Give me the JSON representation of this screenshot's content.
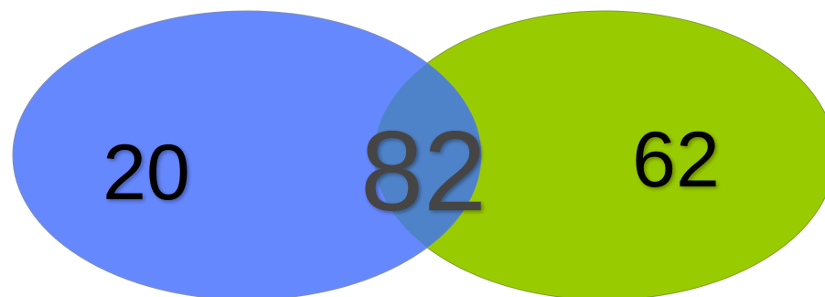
{
  "venn": {
    "left": {
      "value": "20",
      "color": "#6688ff"
    },
    "right": {
      "value": "62",
      "color": "#99cc00"
    },
    "overlap": {
      "value": "82",
      "color": "#4f83c9",
      "text_color": "#444444"
    }
  }
}
